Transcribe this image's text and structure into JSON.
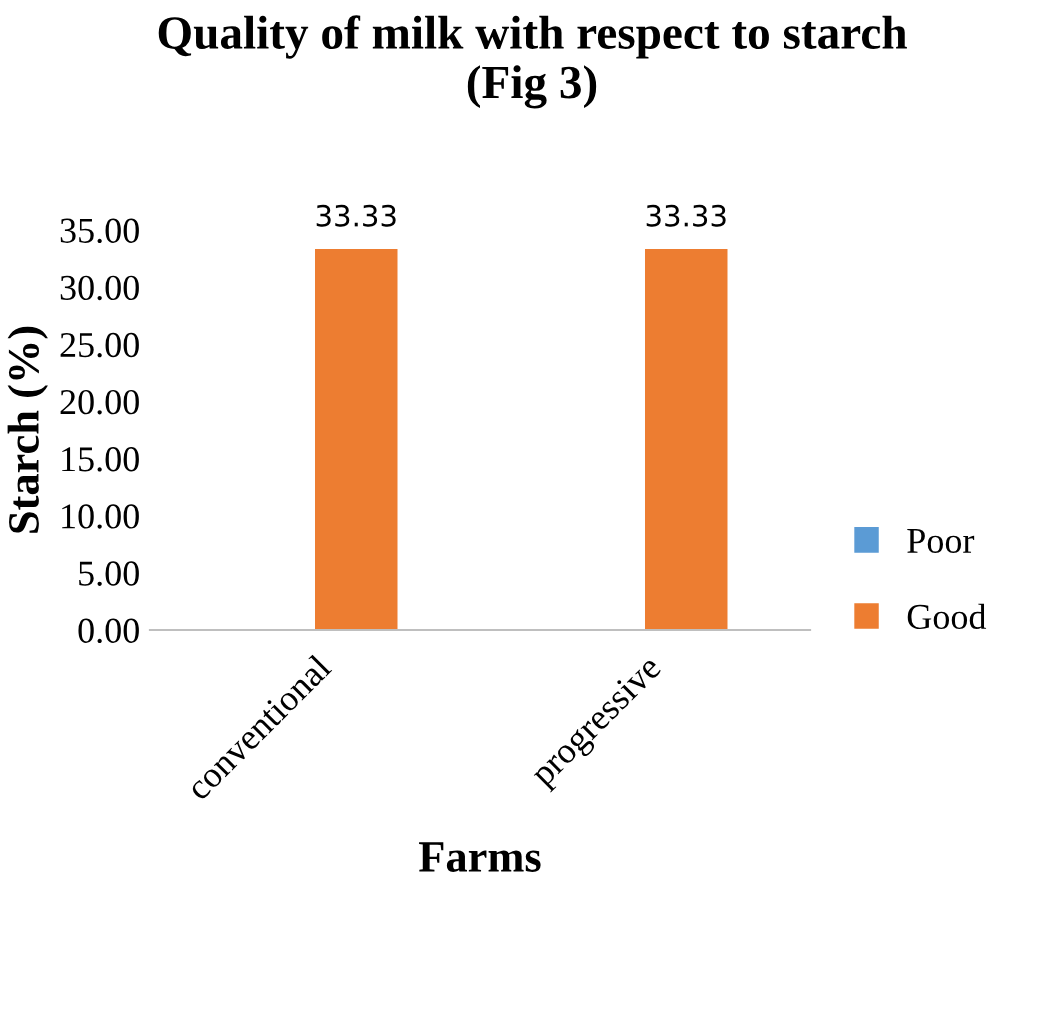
{
  "chart_data": {
    "type": "bar",
    "title": "Quality of milk with respect to starch (Fig 3)",
    "xlabel": "Farms",
    "ylabel": "Starch (%)",
    "categories": [
      "conventional",
      "progressive"
    ],
    "series": [
      {
        "name": "Poor",
        "color": "#5b9bd5",
        "values": [
          0,
          0
        ],
        "value_labels": [
          null,
          null
        ]
      },
      {
        "name": "Good",
        "color": "#ed7d31",
        "values": [
          33.33,
          33.33
        ],
        "value_labels": [
          "33.33",
          "33.33"
        ]
      }
    ],
    "ylim": [
      0,
      35
    ],
    "yticks": [
      {
        "value": 0,
        "label": "0.00"
      },
      {
        "value": 5,
        "label": "5.00"
      },
      {
        "value": 10,
        "label": "10.00"
      },
      {
        "value": 15,
        "label": "15.00"
      },
      {
        "value": 20,
        "label": "20.00"
      },
      {
        "value": 25,
        "label": "25.00"
      },
      {
        "value": 30,
        "label": "30.00"
      },
      {
        "value": 35,
        "label": "35.00"
      }
    ],
    "grid": false,
    "legend": "right"
  }
}
